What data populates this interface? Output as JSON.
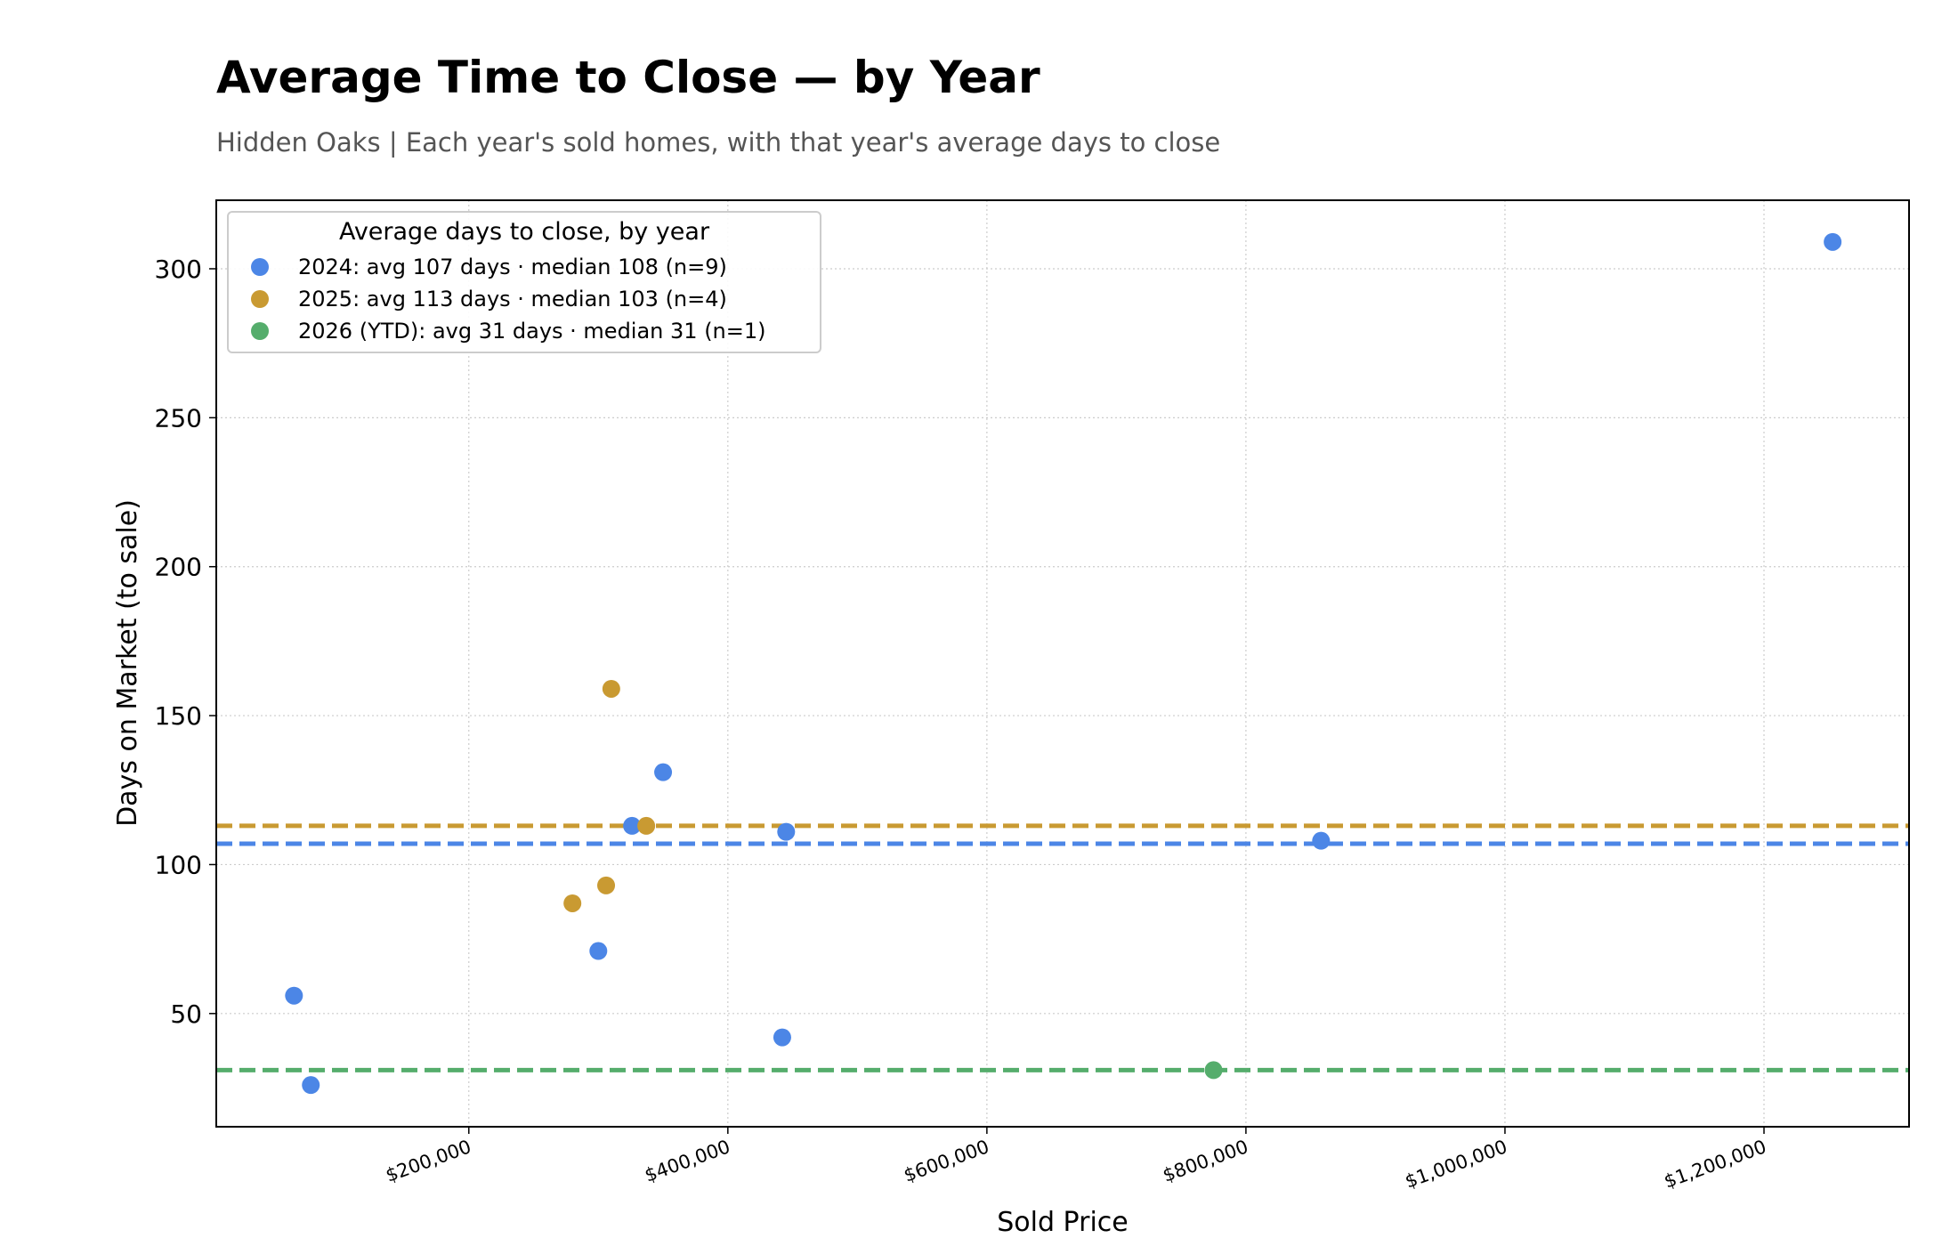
{
  "header": {
    "title": "Average Time to Close — by Year",
    "subtitle": "Hidden Oaks  |  Each year's sold homes, with that year's average days to close"
  },
  "chart_data": {
    "type": "scatter",
    "title": "Average Time to Close — by Year",
    "subtitle": "Hidden Oaks  |  Each year's sold homes, with that year's average days to close",
    "xlabel": "Sold Price",
    "ylabel": "Days on Market (to sale)",
    "xlim": [
      5000,
      1312000
    ],
    "ylim": [
      12,
      323
    ],
    "xticks": [
      200000,
      400000,
      600000,
      800000,
      1000000,
      1200000
    ],
    "xtick_labels": [
      "$200,000",
      "$400,000",
      "$600,000",
      "$800,000",
      "$1,000,000",
      "$1,200,000"
    ],
    "yticks": [
      50,
      100,
      150,
      200,
      250,
      300
    ],
    "ytick_labels": [
      "50",
      "100",
      "150",
      "200",
      "250",
      "300"
    ],
    "grid": true,
    "legend": {
      "title": "Average days to close, by year",
      "placement": "top-left"
    },
    "series": [
      {
        "name": "2024: avg 107 days  ·  median 108  (n=9)",
        "color": "#4c86e6",
        "average": 107,
        "points": [
          {
            "x": 65000,
            "y": 56
          },
          {
            "x": 78000,
            "y": 26
          },
          {
            "x": 300000,
            "y": 71
          },
          {
            "x": 326000,
            "y": 113
          },
          {
            "x": 350000,
            "y": 131
          },
          {
            "x": 442000,
            "y": 42
          },
          {
            "x": 445000,
            "y": 111
          },
          {
            "x": 858000,
            "y": 108
          },
          {
            "x": 1253000,
            "y": 309
          }
        ]
      },
      {
        "name": "2025: avg 113 days  ·  median 103  (n=4)",
        "color": "#c99a32",
        "average": 113,
        "points": [
          {
            "x": 280000,
            "y": 87
          },
          {
            "x": 306000,
            "y": 93
          },
          {
            "x": 310000,
            "y": 159
          },
          {
            "x": 337000,
            "y": 113
          }
        ]
      },
      {
        "name": "2026 (YTD): avg 31 days  ·  median 31  (n=1)",
        "color": "#55ad6c",
        "average": 31,
        "points": [
          {
            "x": 775000,
            "y": 31
          }
        ]
      }
    ]
  }
}
